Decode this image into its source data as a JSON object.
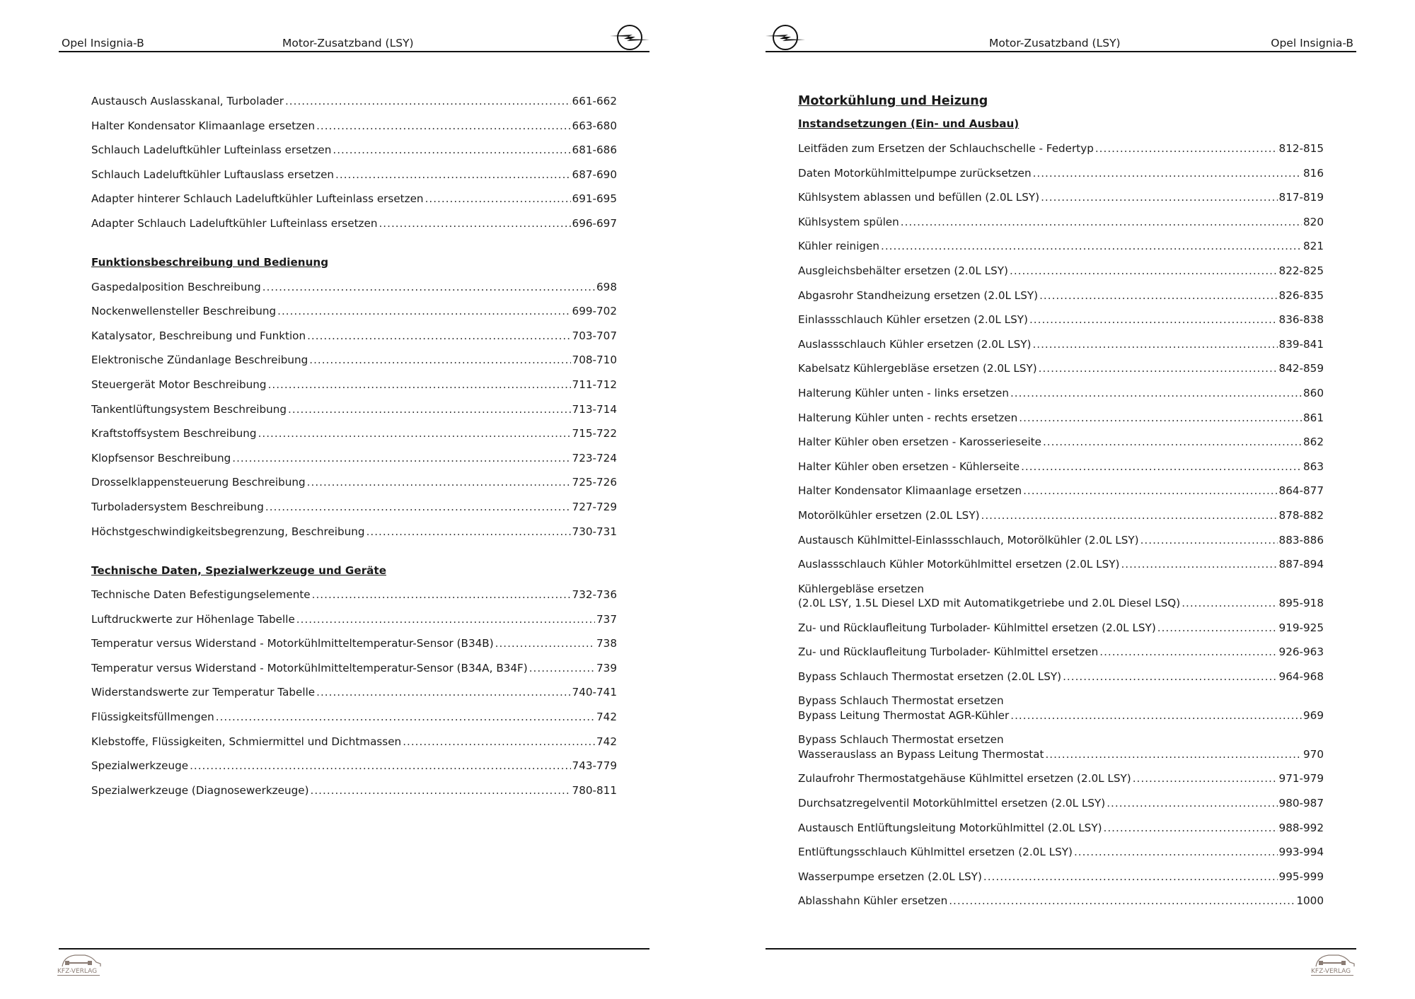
{
  "left_page": {
    "header": {
      "vehicle": "Opel Insignia-B",
      "title": "Motor-Zusatzband (LSY)"
    },
    "sections": [
      {
        "heading": "",
        "entries": [
          {
            "lines": [
              "Austausch Auslasskanal, Turbolader"
            ],
            "page": "661-662"
          },
          {
            "lines": [
              "Halter Kondensator Klimaanlage ersetzen"
            ],
            "page": "663-680"
          },
          {
            "lines": [
              "Schlauch Ladeluftkühler Lufteinlass ersetzen"
            ],
            "page": "681-686"
          },
          {
            "lines": [
              "Schlauch Ladeluftkühler Luftauslass ersetzen"
            ],
            "page": "687-690"
          },
          {
            "lines": [
              "Adapter hinterer Schlauch Ladeluftkühler Lufteinlass ersetzen"
            ],
            "page": "691-695"
          },
          {
            "lines": [
              "Adapter Schlauch Ladeluftkühler Lufteinlass ersetzen"
            ],
            "page": "696-697"
          }
        ]
      },
      {
        "heading": "Funktionsbeschreibung und Bedienung",
        "entries": [
          {
            "lines": [
              "Gaspedalposition Beschreibung"
            ],
            "page": "698"
          },
          {
            "lines": [
              "Nockenwellensteller Beschreibung"
            ],
            "page": "699-702"
          },
          {
            "lines": [
              "Katalysator, Beschreibung und Funktion"
            ],
            "page": "703-707"
          },
          {
            "lines": [
              "Elektronische Zündanlage Beschreibung"
            ],
            "page": "708-710"
          },
          {
            "lines": [
              "Steuergerät Motor Beschreibung"
            ],
            "page": "711-712"
          },
          {
            "lines": [
              "Tankentlüftungsystem Beschreibung"
            ],
            "page": "713-714"
          },
          {
            "lines": [
              "Kraftstoffsystem Beschreibung"
            ],
            "page": "715-722"
          },
          {
            "lines": [
              "Klopfsensor Beschreibung"
            ],
            "page": "723-724"
          },
          {
            "lines": [
              "Drosselklappensteuerung Beschreibung"
            ],
            "page": "725-726"
          },
          {
            "lines": [
              "Turboladersystem Beschreibung"
            ],
            "page": "727-729"
          },
          {
            "lines": [
              "Höchstgeschwindigkeitsbegrenzung, Beschreibung"
            ],
            "page": "730-731"
          }
        ]
      },
      {
        "heading": "Technische Daten, Spezialwerkzeuge und Geräte",
        "entries": [
          {
            "lines": [
              "Technische Daten Befestigungselemente"
            ],
            "page": "732-736"
          },
          {
            "lines": [
              "Luftdruckwerte zur Höhenlage Tabelle"
            ],
            "page": "737"
          },
          {
            "lines": [
              "Temperatur versus Widerstand - Motorkühlmitteltemperatur-Sensor (B34B)"
            ],
            "page": "738"
          },
          {
            "lines": [
              "Temperatur versus Widerstand - Motorkühlmitteltemperatur-Sensor (B34A, B34F)"
            ],
            "page": "739"
          },
          {
            "lines": [
              "Widerstandswerte zur Temperatur Tabelle"
            ],
            "page": "740-741"
          },
          {
            "lines": [
              "Flüssigkeitsfüllmengen"
            ],
            "page": "742"
          },
          {
            "lines": [
              "Klebstoffe, Flüssigkeiten, Schmiermittel und Dichtmassen"
            ],
            "page": "742"
          },
          {
            "lines": [
              "Spezialwerkzeuge"
            ],
            "page": "743-779"
          },
          {
            "lines": [
              "Spezialwerkzeuge (Diagnosewerkzeuge)"
            ],
            "page": "780-811"
          }
        ]
      }
    ],
    "footer_logo_text": "KFZ-VERLAG"
  },
  "right_page": {
    "header": {
      "vehicle": "Opel Insignia-B",
      "title": "Motor-Zusatzband (LSY)"
    },
    "chapter": "Motorkühlung und Heizung",
    "sections": [
      {
        "heading": "Instandsetzungen (Ein- und Ausbau)",
        "entries": [
          {
            "lines": [
              "Leitfäden zum Ersetzen der Schlauchschelle - Federtyp"
            ],
            "page": "812-815"
          },
          {
            "lines": [
              "Daten Motorkühlmittelpumpe zurücksetzen"
            ],
            "page": "816"
          },
          {
            "lines": [
              "Kühlsystem ablassen und befüllen (2.0L LSY)"
            ],
            "page": "817-819"
          },
          {
            "lines": [
              "Kühlsystem spülen"
            ],
            "page": "820"
          },
          {
            "lines": [
              "Kühler reinigen"
            ],
            "page": "821"
          },
          {
            "lines": [
              "Ausgleichsbehälter ersetzen (2.0L LSY)"
            ],
            "page": "822-825"
          },
          {
            "lines": [
              "Abgasrohr Standheizung ersetzen (2.0L LSY)"
            ],
            "page": "826-835"
          },
          {
            "lines": [
              "Einlassschlauch Kühler ersetzen (2.0L LSY)"
            ],
            "page": "836-838"
          },
          {
            "lines": [
              "Auslassschlauch Kühler ersetzen (2.0L LSY)"
            ],
            "page": "839-841"
          },
          {
            "lines": [
              "Kabelsatz Kühlergebläse ersetzen (2.0L LSY)"
            ],
            "page": "842-859"
          },
          {
            "lines": [
              "Halterung Kühler unten - links ersetzen"
            ],
            "page": "860"
          },
          {
            "lines": [
              "Halterung Kühler unten - rechts ersetzen"
            ],
            "page": "861"
          },
          {
            "lines": [
              "Halter Kühler oben ersetzen - Karosserieseite"
            ],
            "page": "862"
          },
          {
            "lines": [
              "Halter Kühler oben ersetzen - Kühlerseite"
            ],
            "page": "863"
          },
          {
            "lines": [
              "Halter Kondensator Klimaanlage ersetzen"
            ],
            "page": "864-877"
          },
          {
            "lines": [
              "Motorölkühler ersetzen (2.0L LSY)"
            ],
            "page": "878-882"
          },
          {
            "lines": [
              "Austausch Kühlmittel-Einlassschlauch, Motorölkühler (2.0L LSY)"
            ],
            "page": "883-886"
          },
          {
            "lines": [
              "Auslassschlauch Kühler Motorkühlmittel ersetzen (2.0L LSY)"
            ],
            "page": "887-894"
          },
          {
            "lines": [
              "Kühlergebläse ersetzen",
              "(2.0L LSY, 1.5L Diesel LXD mit Automatikgetriebe und 2.0L Diesel LSQ)"
            ],
            "page": "895-918"
          },
          {
            "lines": [
              "Zu- und Rücklaufleitung Turbolader- Kühlmittel ersetzen (2.0L LSY)"
            ],
            "page": "919-925"
          },
          {
            "lines": [
              "Zu- und Rücklaufleitung Turbolader- Kühlmittel ersetzen"
            ],
            "page": "926-963"
          },
          {
            "lines": [
              "Bypass Schlauch Thermostat ersetzen (2.0L LSY)"
            ],
            "page": "964-968"
          },
          {
            "lines": [
              "Bypass Schlauch Thermostat ersetzen",
              "Bypass Leitung Thermostat AGR-Kühler"
            ],
            "page": "969"
          },
          {
            "lines": [
              "Bypass Schlauch Thermostat ersetzen",
              "Wasserauslass an Bypass Leitung Thermostat"
            ],
            "page": "970"
          },
          {
            "lines": [
              "Zulaufrohr Thermostatgehäuse Kühlmittel ersetzen (2.0L LSY)"
            ],
            "page": "971-979"
          },
          {
            "lines": [
              "Durchsatzregelventil Motorkühlmittel ersetzen (2.0L LSY)"
            ],
            "page": "980-987"
          },
          {
            "lines": [
              "Austausch Entlüftungsleitung Motorkühlmittel (2.0L LSY)"
            ],
            "page": "988-992"
          },
          {
            "lines": [
              "Entlüftungsschlauch Kühlmittel ersetzen (2.0L LSY)"
            ],
            "page": "993-994"
          },
          {
            "lines": [
              "Wasserpumpe ersetzen (2.0L LSY)"
            ],
            "page": "995-999"
          },
          {
            "lines": [
              "Ablasshahn Kühler ersetzen"
            ],
            "page": "1000"
          }
        ]
      }
    ],
    "footer_logo_text": "KFZ-VERLAG"
  },
  "colors": {
    "text": "#1a1a1a",
    "rule": "#111111",
    "logo_brown": "#8a7c74"
  },
  "icons": {
    "brand_logo": "opel-logo",
    "publisher_logo": "kfz-verlag-logo"
  }
}
